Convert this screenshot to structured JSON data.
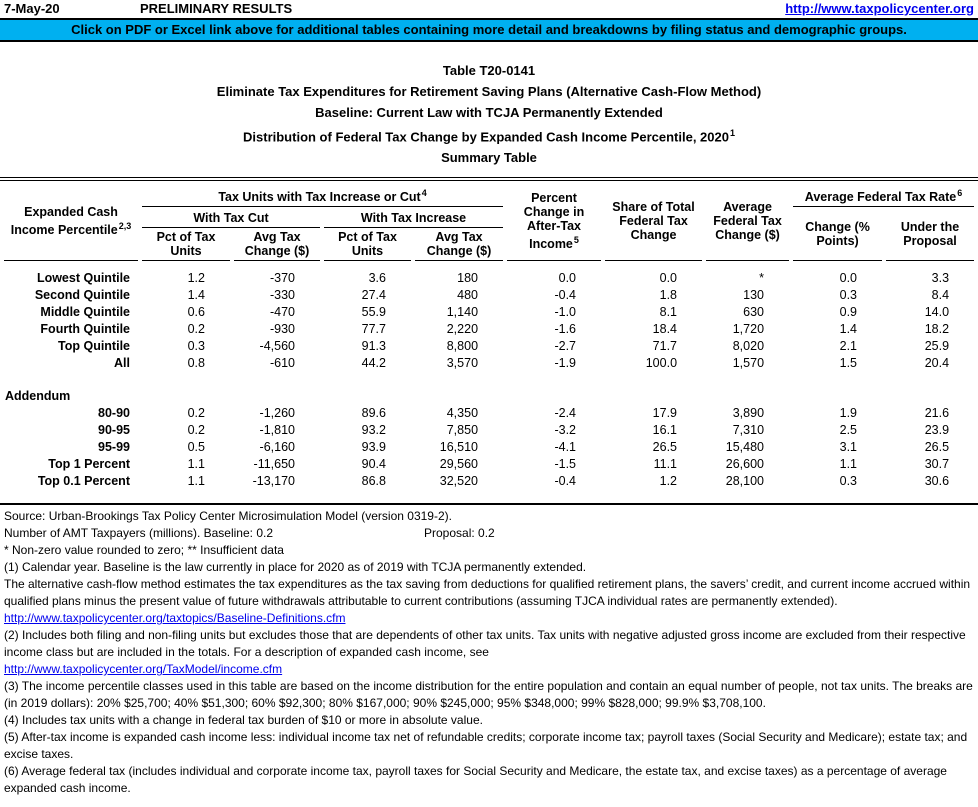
{
  "topbar": {
    "date": "7-May-20",
    "status": "PRELIMINARY RESULTS",
    "link": "http://www.taxpolicycenter.org"
  },
  "banner": {
    "text": "Click on PDF or Excel link above for additional tables containing more detail and breakdowns by filing status and demographic groups.",
    "bg_color": "#00B0F0"
  },
  "titles": [
    {
      "text": "Table T20-0141"
    },
    {
      "text": "Eliminate Tax Expenditures for Retirement Saving Plans (Alternative Cash-Flow Method)"
    },
    {
      "text": "Baseline: Current Law with TCJA Permanently Extended"
    },
    {
      "text": "Distribution of Federal Tax Change by Expanded Cash Income Percentile, 2020",
      "sup": "1"
    },
    {
      "text": "Summary Table"
    }
  ],
  "table": {
    "row_header": {
      "text": "Expanded Cash Income Percentile",
      "sup": "2,3"
    },
    "col_group_header": {
      "text": "Tax Units with Tax Increase or Cut",
      "sup": "4"
    },
    "subgroups": [
      "With Tax Cut",
      "With Tax Increase"
    ],
    "leaf_headers": [
      "Pct of Tax Units",
      "Avg Tax Change ($)",
      "Pct of Tax Units",
      "Avg Tax Change ($)"
    ],
    "single_headers": [
      {
        "text": "Percent Change in After-Tax Income",
        "sup": "5"
      },
      {
        "text": "Share of Total Federal Tax Change",
        "sup": ""
      },
      {
        "text": "Average Federal Tax Change ($)",
        "sup": ""
      }
    ],
    "rate_group_header": {
      "text": "Average Federal Tax Rate",
      "sup": "6"
    },
    "rate_leaf_headers": [
      "Change (% Points)",
      "Under the Proposal"
    ],
    "rows": [
      {
        "label": "Lowest Quintile",
        "values": [
          "1.2",
          "-370",
          "3.6",
          "180",
          "0.0",
          "0.0",
          "*",
          "0.0",
          "3.3"
        ]
      },
      {
        "label": "Second Quintile",
        "values": [
          "1.4",
          "-330",
          "27.4",
          "480",
          "-0.4",
          "1.8",
          "130",
          "0.3",
          "8.4"
        ]
      },
      {
        "label": "Middle Quintile",
        "values": [
          "0.6",
          "-470",
          "55.9",
          "1,140",
          "-1.0",
          "8.1",
          "630",
          "0.9",
          "14.0"
        ]
      },
      {
        "label": "Fourth Quintile",
        "values": [
          "0.2",
          "-930",
          "77.7",
          "2,220",
          "-1.6",
          "18.4",
          "1,720",
          "1.4",
          "18.2"
        ]
      },
      {
        "label": "Top Quintile",
        "values": [
          "0.3",
          "-4,560",
          "91.3",
          "8,800",
          "-2.7",
          "71.7",
          "8,020",
          "2.1",
          "25.9"
        ]
      },
      {
        "label": "All",
        "values": [
          "0.8",
          "-610",
          "44.2",
          "3,570",
          "-1.9",
          "100.0",
          "1,570",
          "1.5",
          "20.4"
        ]
      },
      {
        "type": "spacer"
      },
      {
        "type": "section",
        "label": "Addendum"
      },
      {
        "label": "80-90",
        "values": [
          "0.2",
          "-1,260",
          "89.6",
          "4,350",
          "-2.4",
          "17.9",
          "3,890",
          "1.9",
          "21.6"
        ]
      },
      {
        "label": "90-95",
        "values": [
          "0.2",
          "-1,810",
          "93.2",
          "7,850",
          "-3.2",
          "16.1",
          "7,310",
          "2.5",
          "23.9"
        ]
      },
      {
        "label": "95-99",
        "values": [
          "0.5",
          "-6,160",
          "93.9",
          "16,510",
          "-4.1",
          "26.5",
          "15,480",
          "3.1",
          "26.5"
        ]
      },
      {
        "label": "Top 1 Percent",
        "values": [
          "1.1",
          "-11,650",
          "90.4",
          "29,560",
          "-1.5",
          "11.1",
          "26,600",
          "1.1",
          "30.7"
        ]
      },
      {
        "label": "Top 0.1 Percent",
        "values": [
          "1.1",
          "-13,170",
          "86.8",
          "32,520",
          "-0.4",
          "1.2",
          "28,100",
          "0.3",
          "30.6"
        ]
      }
    ]
  },
  "notes": [
    {
      "text": "Source: Urban-Brookings Tax Policy Center Microsimulation Model (version 0319-2)."
    },
    {
      "text": "Number of AMT Taxpayers (millions).  Baseline: 0.2",
      "proposal": "Proposal: 0.2"
    },
    {
      "text": "* Non-zero value rounded to zero; ** Insufficient data"
    },
    {
      "text": "(1) Calendar year. Baseline is the law currently in place for 2020 as of 2019 with TCJA permanently extended."
    },
    {
      "text": "The alternative cash-flow method  estimates the tax expenditures as the tax saving from deductions for qualified retirement plans, the savers’ credit, and current income accrued within qualified plans minus the present value of future withdrawals attributable to current contributions  (assuming TJCA individual rates are permanently extended)."
    },
    {
      "text": "http://www.taxpolicycenter.org/taxtopics/Baseline-Definitions.cfm",
      "link": true
    },
    {
      "text": "(2) Includes both filing and non-filing units but excludes those that are dependents of other tax units. Tax units with negative adjusted gross income are excluded from their respective income class but are included in the totals. For a description of expanded cash income, see"
    },
    {
      "text": "http://www.taxpolicycenter.org/TaxModel/income.cfm",
      "link": true
    },
    {
      "text": "(3) The income percentile classes used in this table are based on the income distribution for the entire population and contain an equal number of people, not tax units. The breaks are (in 2019 dollars): 20% $25,700; 40% $51,300; 60% $92,300; 80% $167,000; 90% $245,000; 95% $348,000; 99% $828,000; 99.9% $3,708,100."
    },
    {
      "text": "(4) Includes tax units with a change in federal tax burden of $10 or more in absolute value."
    },
    {
      "text": "(5) After-tax income is expanded cash income less: individual income tax net of refundable credits; corporate income tax; payroll taxes (Social Security and Medicare); estate tax; and excise taxes."
    },
    {
      "text": "(6) Average federal tax (includes individual and corporate income tax, payroll taxes for Social Security and Medicare, the estate tax, and excise taxes) as a percentage of average expanded cash income."
    }
  ]
}
